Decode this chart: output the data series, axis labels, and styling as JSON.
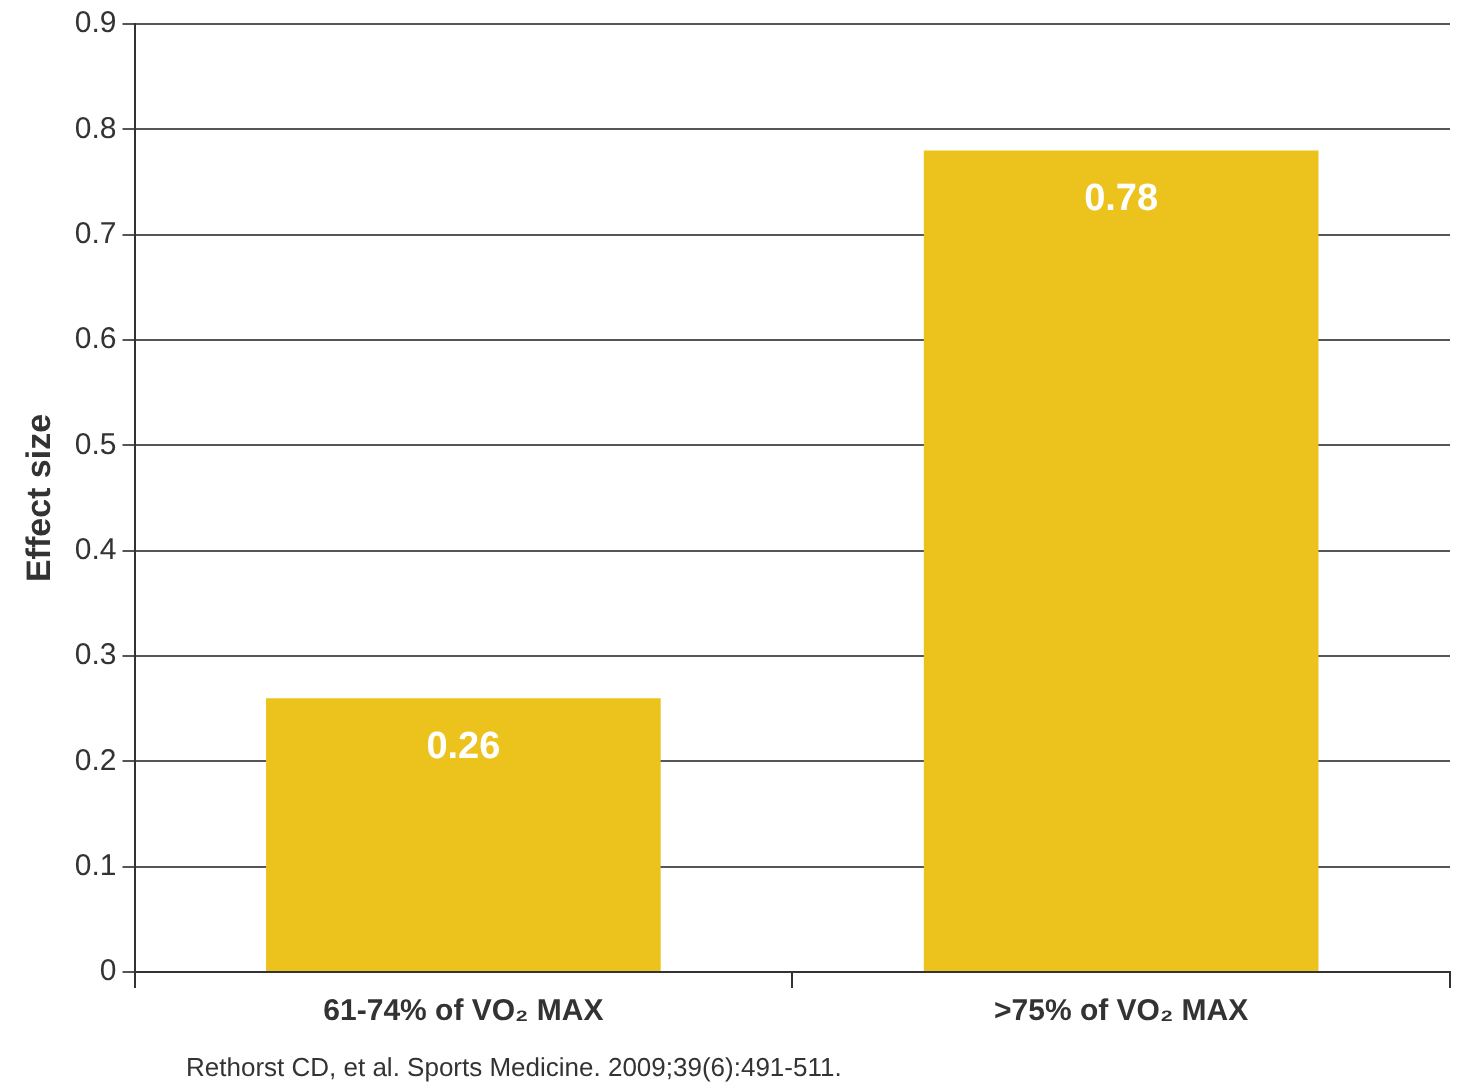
{
  "chart_data": {
    "type": "bar",
    "ylabel": "Effect size",
    "categories": [
      "61-74% of VO₂ MAX",
      ">75% of VO₂ MAX"
    ],
    "values": [
      0.26,
      0.78
    ],
    "color": "#ecc21c",
    "ylim": [
      0,
      0.9
    ],
    "yticks": [
      0,
      0.1,
      0.2,
      0.3,
      0.4,
      0.5,
      0.6,
      0.7,
      0.8,
      0.9
    ],
    "grid": "y",
    "legend": false,
    "data_labels": true,
    "annotations": [
      "Rethorst CD, et al. Sports Medicine. 2009;39(6):491-511."
    ]
  }
}
